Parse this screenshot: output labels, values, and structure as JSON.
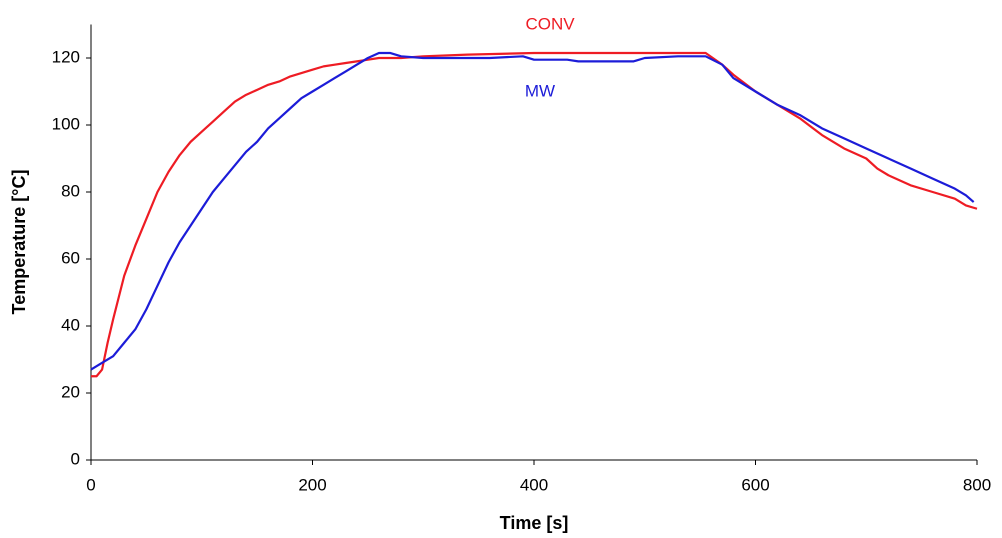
{
  "chart_data": {
    "type": "line",
    "xlabel": "Time [s]",
    "ylabel": "Temperature [°C]",
    "xlim": [
      0,
      800
    ],
    "xticks": [
      0,
      200,
      400,
      600,
      800
    ],
    "ylim": [
      0,
      130
    ],
    "yticks": [
      0,
      20,
      40,
      60,
      80,
      100,
      120
    ],
    "grid": false,
    "series": [
      {
        "name": "CONV",
        "color": "#ee1c24",
        "x": [
          0,
          5,
          10,
          15,
          20,
          30,
          40,
          50,
          60,
          70,
          80,
          90,
          100,
          110,
          120,
          130,
          140,
          150,
          160,
          170,
          180,
          190,
          200,
          210,
          220,
          230,
          240,
          250,
          260,
          280,
          300,
          340,
          400,
          500,
          555,
          570,
          580,
          600,
          620,
          640,
          660,
          680,
          700,
          710,
          720,
          740,
          760,
          780,
          790,
          800
        ],
        "values": [
          25,
          25,
          27,
          35,
          42,
          55,
          64,
          72,
          80,
          86,
          91,
          95,
          98,
          101,
          104,
          107,
          109,
          110.5,
          112,
          113,
          114.5,
          115.5,
          116.5,
          117.5,
          118,
          118.5,
          119,
          119.5,
          120,
          120,
          120.5,
          121,
          121.5,
          121.5,
          121.5,
          118,
          115,
          110,
          106,
          102,
          97,
          93,
          90,
          87,
          85,
          82,
          80,
          78,
          76,
          75
        ]
      },
      {
        "name": "MW",
        "color": "#1c1cd8",
        "x": [
          0,
          5,
          10,
          20,
          30,
          40,
          50,
          60,
          70,
          80,
          90,
          100,
          110,
          120,
          130,
          140,
          150,
          160,
          170,
          180,
          190,
          200,
          210,
          220,
          230,
          240,
          250,
          260,
          270,
          280,
          300,
          360,
          390,
          400,
          430,
          440,
          490,
          500,
          530,
          555,
          570,
          580,
          600,
          620,
          640,
          660,
          680,
          700,
          720,
          740,
          760,
          780,
          790,
          797
        ],
        "values": [
          27,
          28,
          29,
          31,
          35,
          39,
          45,
          52,
          59,
          65,
          70,
          75,
          80,
          84,
          88,
          92,
          95,
          99,
          102,
          105,
          108,
          110,
          112,
          114,
          116,
          118,
          120,
          121.5,
          121.5,
          120.5,
          120,
          120,
          120.5,
          119.5,
          119.5,
          119,
          119,
          120,
          120.5,
          120.5,
          118,
          114,
          110,
          106,
          103,
          99,
          96,
          93,
          90,
          87,
          84,
          81,
          79,
          77
        ]
      }
    ]
  }
}
